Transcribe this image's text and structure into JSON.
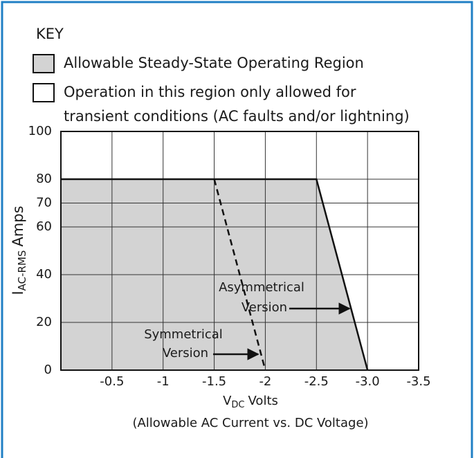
{
  "chart_data": {
    "type": "area-line",
    "key_title": "KEY",
    "legend": [
      {
        "label": [
          "Allowable Steady-State Operating Region"
        ],
        "fill": "#d3d3d3"
      },
      {
        "label": [
          "Operation in this region only allowed for",
          "transient conditions (AC faults and/or lightning)"
        ],
        "fill": "#ffffff"
      }
    ],
    "y_label": {
      "main": "I",
      "sub": "AC-RMS",
      "rest": "Amps"
    },
    "x_label": {
      "main": "V",
      "sub": "DC",
      "rest": "Volts"
    },
    "subtitle": "(Allowable AC Current vs. DC Voltage)",
    "xlim": [
      0,
      -3.5
    ],
    "xticks": [
      -0.5,
      -1,
      -1.5,
      -2,
      -2.5,
      {
        "value": -3,
        "label": "-3.0"
      },
      -3.5
    ],
    "ylim": [
      0,
      100
    ],
    "yticks": [
      0,
      20,
      40,
      60,
      70,
      80,
      100
    ],
    "grid": true,
    "series": [
      {
        "x": [
          0,
          -2.5,
          -3
        ],
        "values": [
          80,
          80,
          0
        ],
        "color": "#111111",
        "fill": "#d3d3d3",
        "style": "solid"
      },
      {
        "x": [
          -1.5,
          -2
        ],
        "values": [
          80,
          0
        ],
        "color": "#111111",
        "style": "dashed"
      }
    ],
    "annotations": [
      {
        "lines": [
          "Asymmetrical",
          "Version"
        ]
      },
      {
        "lines": [
          "Symmetrical",
          "Version"
        ]
      }
    ],
    "border_color": "#1f7fc4"
  }
}
